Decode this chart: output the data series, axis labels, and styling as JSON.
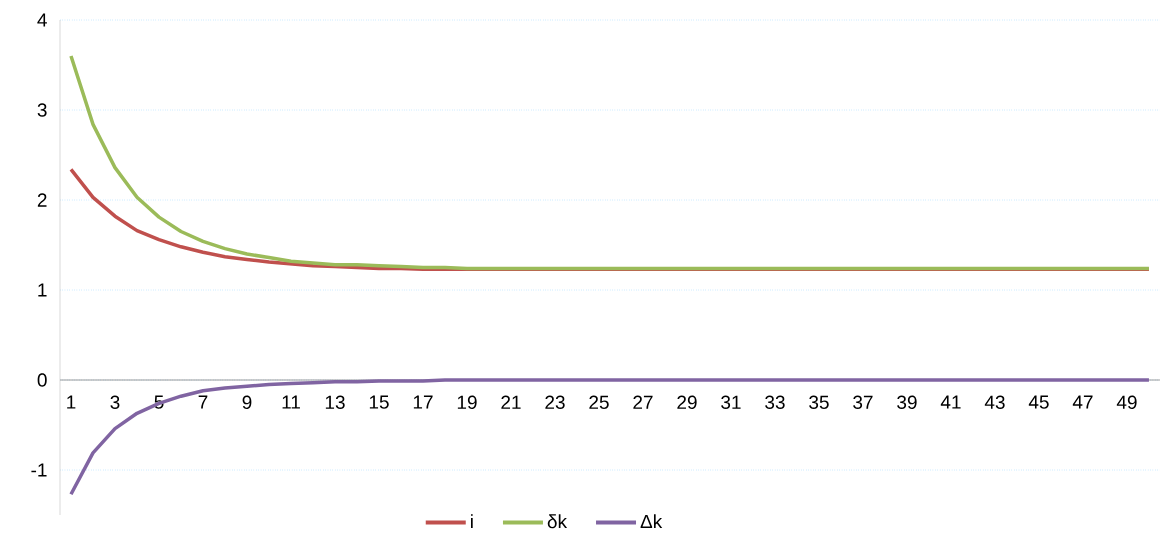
{
  "chart_data": {
    "type": "line",
    "categories": [
      "1",
      null,
      "3",
      null,
      "5",
      null,
      "7",
      null,
      "9",
      null,
      "11",
      null,
      "13",
      null,
      "15",
      null,
      "17",
      null,
      "19",
      null,
      "21",
      null,
      "23",
      null,
      "25",
      null,
      "27",
      null,
      "29",
      null,
      "31",
      null,
      "33",
      null,
      "35",
      null,
      "37",
      null,
      "39",
      null,
      "41",
      null,
      "43",
      null,
      "45",
      null,
      "47",
      null,
      "49",
      null
    ],
    "series": [
      {
        "name": "i",
        "color": "#c0504d",
        "values": [
          2.34,
          2.03,
          1.82,
          1.66,
          1.56,
          1.48,
          1.42,
          1.37,
          1.34,
          1.31,
          1.29,
          1.27,
          1.26,
          1.25,
          1.24,
          1.24,
          1.23,
          1.23,
          1.23,
          1.23,
          1.23,
          1.23,
          1.23,
          1.23,
          1.23,
          1.23,
          1.23,
          1.23,
          1.23,
          1.23,
          1.23,
          1.23,
          1.23,
          1.23,
          1.23,
          1.23,
          1.23,
          1.23,
          1.23,
          1.23,
          1.23,
          1.23,
          1.23,
          1.23,
          1.23,
          1.23,
          1.23,
          1.23,
          1.23,
          1.23
        ]
      },
      {
        "name": "δk",
        "color": "#9bbb59",
        "values": [
          3.6,
          2.84,
          2.36,
          2.03,
          1.81,
          1.65,
          1.54,
          1.46,
          1.4,
          1.36,
          1.32,
          1.3,
          1.28,
          1.28,
          1.27,
          1.26,
          1.25,
          1.25,
          1.24,
          1.24,
          1.24,
          1.24,
          1.24,
          1.24,
          1.24,
          1.24,
          1.24,
          1.24,
          1.24,
          1.24,
          1.24,
          1.24,
          1.24,
          1.24,
          1.24,
          1.24,
          1.24,
          1.24,
          1.24,
          1.24,
          1.24,
          1.24,
          1.24,
          1.24,
          1.24,
          1.24,
          1.24,
          1.24,
          1.24,
          1.24
        ]
      },
      {
        "name": "Δk",
        "color": "#8064a2",
        "values": [
          -1.27,
          -0.81,
          -0.54,
          -0.37,
          -0.26,
          -0.18,
          -0.12,
          -0.09,
          -0.07,
          -0.05,
          -0.04,
          -0.03,
          -0.02,
          -0.02,
          -0.01,
          -0.01,
          -0.01,
          0,
          0,
          0,
          0,
          0,
          0,
          0,
          0,
          0,
          0,
          0,
          0,
          0,
          0,
          0,
          0,
          0,
          0,
          0,
          0,
          0,
          0,
          0,
          0,
          0,
          0,
          0,
          0,
          0,
          0,
          0,
          0,
          0
        ]
      }
    ],
    "ylim": [
      -1.5,
      4
    ],
    "yticks": [
      -1,
      0,
      1,
      2,
      3,
      4
    ],
    "grid": "y",
    "legend": "bottom",
    "marker": "none",
    "line_style": "solid"
  }
}
